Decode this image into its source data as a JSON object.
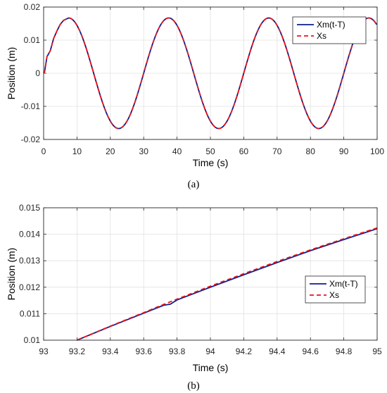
{
  "chart_data": [
    {
      "id": "a",
      "type": "line",
      "caption": "(a)",
      "xlabel": "Time (s)",
      "ylabel": "Position (m)",
      "xlim": [
        0,
        100
      ],
      "ylim": [
        -0.02,
        0.02
      ],
      "xticks": [
        0,
        10,
        20,
        30,
        40,
        50,
        60,
        70,
        80,
        90,
        100
      ],
      "xtick_labels": [
        "0",
        "10",
        "20",
        "30",
        "40",
        "50",
        "60",
        "70",
        "80",
        "90",
        "100"
      ],
      "yticks": [
        -0.02,
        -0.01,
        0,
        0.01,
        0.02
      ],
      "ytick_labels": [
        "-0.02",
        "-0.01",
        "0",
        "0.01",
        "0.02"
      ],
      "grid": true,
      "legend_position": "top-right",
      "series": [
        {
          "name": "Xm(t-T)",
          "color": "#0b1f8c",
          "style": "solid",
          "model": "x<0.3: 0.004*x/0.3; x<5: 0.004 + (0.0167-0.004)*(x-0.3)/(7.5-0.3) with small ripples near t=1..3; else 0.0167*sin(2*pi*(x-0)/30)",
          "points_x": [
            0,
            0.3,
            1,
            2,
            3,
            4,
            5,
            6,
            7.5,
            10,
            12.5,
            15,
            17.5,
            20,
            22.5,
            25,
            27.5,
            30,
            32.5,
            35,
            37.5,
            40,
            42.5,
            45,
            47.5,
            50,
            52.5,
            55,
            57.5,
            60,
            62.5,
            65,
            67.5,
            70,
            72.5,
            75,
            77.5,
            80,
            82.5,
            85,
            87.5,
            90,
            92.5,
            95,
            97.5,
            100
          ],
          "points_y": [
            0,
            0.0005,
            0.005,
            0.0068,
            0.0105,
            0.0128,
            0.0148,
            0.016,
            0.0167,
            0.0145,
            0.0084,
            0.0,
            -0.0084,
            -0.0145,
            -0.0167,
            -0.0145,
            -0.0084,
            0.0,
            0.0084,
            0.0145,
            0.0167,
            0.0145,
            0.0084,
            0.0,
            -0.0084,
            -0.0145,
            -0.0167,
            -0.0145,
            -0.0084,
            0.0,
            0.0084,
            0.0145,
            0.0167,
            0.0145,
            0.0084,
            0.0,
            -0.0084,
            -0.0145,
            -0.0167,
            -0.0145,
            -0.0084,
            0.0,
            0.0084,
            0.0145,
            0.0167,
            0.0149
          ]
        },
        {
          "name": "Xs",
          "color": "#e8141c",
          "style": "dashed",
          "points_x": [
            0,
            0.3,
            1,
            2,
            3,
            4,
            5,
            6,
            7.5,
            10,
            12.5,
            15,
            17.5,
            20,
            22.5,
            25,
            27.5,
            30,
            32.5,
            35,
            37.5,
            40,
            42.5,
            45,
            47.5,
            50,
            52.5,
            55,
            57.5,
            60,
            62.5,
            65,
            67.5,
            70,
            72.5,
            75,
            77.5,
            80,
            82.5,
            85,
            87.5,
            90,
            92.5,
            95,
            97.5,
            100
          ],
          "points_y": [
            0,
            0.0005,
            0.005,
            0.0068,
            0.0105,
            0.0128,
            0.0148,
            0.016,
            0.0167,
            0.0145,
            0.0084,
            0.0,
            -0.0084,
            -0.0145,
            -0.0167,
            -0.0145,
            -0.0084,
            0.0,
            0.0084,
            0.0145,
            0.0167,
            0.0145,
            0.0084,
            0.0,
            -0.0084,
            -0.0145,
            -0.0167,
            -0.0145,
            -0.0084,
            0.0,
            0.0084,
            0.0145,
            0.0167,
            0.0145,
            0.0084,
            0.0,
            -0.0084,
            -0.0145,
            -0.0167,
            -0.0145,
            -0.0084,
            0.0,
            0.0084,
            0.0145,
            0.0167,
            0.0149
          ]
        }
      ]
    },
    {
      "id": "b",
      "type": "line",
      "caption": "(b)",
      "xlabel": "Time (s)",
      "ylabel": "Position (m)",
      "xlim": [
        93,
        95
      ],
      "ylim": [
        0.01,
        0.015
      ],
      "xticks": [
        93,
        93.2,
        93.4,
        93.6,
        93.8,
        94,
        94.2,
        94.4,
        94.6,
        94.8,
        95
      ],
      "xtick_labels": [
        "93",
        "93.2",
        "93.4",
        "93.6",
        "93.8",
        "94",
        "94.2",
        "94.4",
        "94.6",
        "94.8",
        "95"
      ],
      "yticks": [
        0.01,
        0.011,
        0.012,
        0.013,
        0.014,
        0.015
      ],
      "ytick_labels": [
        "0.01",
        "0.011",
        "0.012",
        "0.013",
        "0.014",
        "0.015"
      ],
      "grid": true,
      "legend_position": "right",
      "series": [
        {
          "name": "Xm(t-T)",
          "color": "#0b1f8c",
          "style": "solid",
          "points_x": [
            93.2,
            93.4,
            93.6,
            93.7,
            93.72,
            93.76,
            93.8,
            94.0,
            94.2,
            94.4,
            94.6,
            94.8,
            95.0
          ],
          "points_y": [
            0.01,
            0.01052,
            0.01102,
            0.01127,
            0.01132,
            0.01136,
            0.01152,
            0.012,
            0.01247,
            0.01293,
            0.01338,
            0.0138,
            0.01421
          ]
        },
        {
          "name": "Xs",
          "color": "#e8141c",
          "style": "dashed",
          "points_x": [
            93.2,
            93.4,
            93.6,
            93.7,
            93.8,
            94.0,
            94.2,
            94.4,
            94.6,
            94.8,
            95.0
          ],
          "points_y": [
            0.01,
            0.01053,
            0.01104,
            0.0113,
            0.01155,
            0.01204,
            0.01251,
            0.01297,
            0.01341,
            0.01383,
            0.01424
          ]
        }
      ]
    }
  ]
}
